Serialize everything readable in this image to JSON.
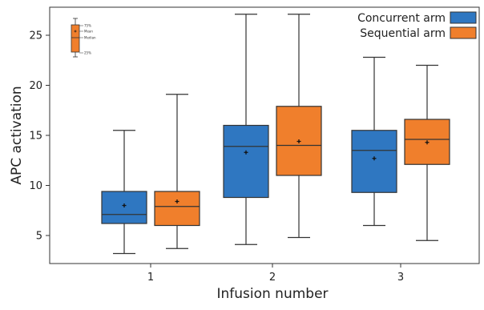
{
  "chart_data": {
    "type": "box",
    "title": "",
    "xlabel": "Infusion number",
    "ylabel": "APC activation",
    "categories": [
      "1",
      "2",
      "3"
    ],
    "ylim": [
      2.2,
      27.8
    ],
    "yticks": [
      5,
      10,
      15,
      20,
      25
    ],
    "grid": false,
    "legend": {
      "position": "top-right",
      "entries": [
        {
          "name": "Concurrent arm",
          "color": "#2f77c1"
        },
        {
          "name": "Sequential arm",
          "color": "#f07f2c"
        }
      ]
    },
    "series": [
      {
        "name": "Concurrent arm",
        "color": "#2f77c1",
        "boxes": [
          {
            "category": "1",
            "min": 3.2,
            "q1": 6.2,
            "median": 7.1,
            "mean": 8.0,
            "q3": 9.4,
            "max": 15.5
          },
          {
            "category": "2",
            "min": 4.1,
            "q1": 8.8,
            "median": 13.9,
            "mean": 13.3,
            "q3": 16.0,
            "max": 27.1
          },
          {
            "category": "3",
            "min": 6.0,
            "q1": 9.3,
            "median": 13.5,
            "mean": 12.7,
            "q3": 15.5,
            "max": 22.8
          }
        ]
      },
      {
        "name": "Sequential arm",
        "color": "#f07f2c",
        "boxes": [
          {
            "category": "1",
            "min": 3.7,
            "q1": 6.0,
            "median": 7.9,
            "mean": 8.4,
            "q3": 9.4,
            "max": 19.1
          },
          {
            "category": "2",
            "min": 4.8,
            "q1": 11.0,
            "median": 14.0,
            "mean": 14.4,
            "q3": 17.9,
            "max": 27.1
          },
          {
            "category": "3",
            "min": 4.5,
            "q1": 12.1,
            "median": 14.6,
            "mean": 14.3,
            "q3": 16.6,
            "max": 22.0
          }
        ]
      }
    ],
    "key": {
      "labels": [
        "75%",
        "Mean",
        "Median",
        "25%"
      ],
      "color": "#f07f2c"
    }
  }
}
